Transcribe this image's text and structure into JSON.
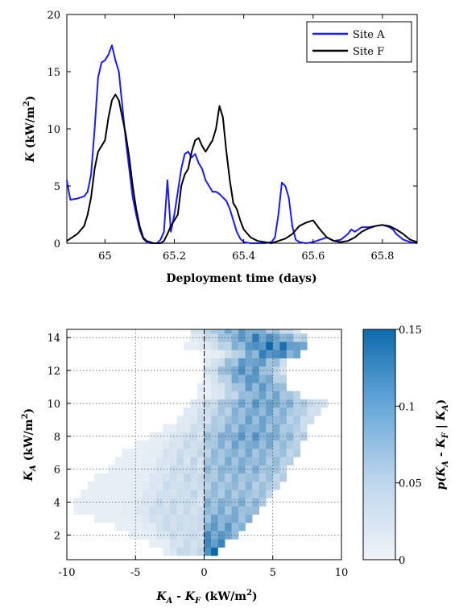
{
  "chart_data": [
    {
      "type": "line",
      "xlabel": "Deployment time (days)",
      "ylabel": {
        "main": "K",
        "unit": "(kW/m",
        "sup": "2",
        "close": ")"
      },
      "xlim": [
        64.89,
        65.9
      ],
      "ylim": [
        0,
        20
      ],
      "xticks": [
        65,
        65.2,
        65.4,
        65.6,
        65.8
      ],
      "xtick_labels": [
        "65",
        "65.2",
        "65.4",
        "65.6",
        "65.8"
      ],
      "yticks": [
        0,
        5,
        10,
        15,
        20
      ],
      "ytick_labels": [
        "0",
        "5",
        "10",
        "15",
        "20"
      ],
      "grid": false,
      "legend_position": "top-right",
      "series": [
        {
          "name": "Site A",
          "color": "#1a1aff",
          "x": [
            64.89,
            64.9,
            64.92,
            64.94,
            64.95,
            64.96,
            64.97,
            64.98,
            64.99,
            65.0,
            65.01,
            65.02,
            65.03,
            65.04,
            65.05,
            65.06,
            65.07,
            65.08,
            65.09,
            65.1,
            65.11,
            65.12,
            65.13,
            65.14,
            65.15,
            65.16,
            65.17,
            65.18,
            65.19,
            65.2,
            65.21,
            65.22,
            65.23,
            65.24,
            65.25,
            65.26,
            65.27,
            65.28,
            65.29,
            65.3,
            65.31,
            65.32,
            65.33,
            65.34,
            65.35,
            65.36,
            65.37,
            65.38,
            65.39,
            65.4,
            65.42,
            65.44,
            65.46,
            65.48,
            65.49,
            65.5,
            65.51,
            65.52,
            65.53,
            65.54,
            65.55,
            65.56,
            65.58,
            65.6,
            65.62,
            65.64,
            65.66,
            65.68,
            65.7,
            65.71,
            65.72,
            65.73,
            65.74,
            65.76,
            65.78,
            65.8,
            65.82,
            65.83,
            65.84,
            65.86,
            65.88,
            65.9
          ],
          "y": [
            5.5,
            3.8,
            3.9,
            4.1,
            4.5,
            6.0,
            10.0,
            14.5,
            15.8,
            16.0,
            16.5,
            17.3,
            16.0,
            15.0,
            12.0,
            9.0,
            6.5,
            4.0,
            2.5,
            1.2,
            0.4,
            0.1,
            0.0,
            0.0,
            0.0,
            0.3,
            1.0,
            5.5,
            1.0,
            2.5,
            4.5,
            6.5,
            7.8,
            8.0,
            7.5,
            7.8,
            7.0,
            6.5,
            5.5,
            5.0,
            4.5,
            4.5,
            4.3,
            4.0,
            3.7,
            3.0,
            2.0,
            1.0,
            0.4,
            0.1,
            0.0,
            0.0,
            0.0,
            0.1,
            0.5,
            2.5,
            5.3,
            5.0,
            4.0,
            1.5,
            0.3,
            0.1,
            0.0,
            0.1,
            0.3,
            0.5,
            0.2,
            0.3,
            0.8,
            1.2,
            1.0,
            1.2,
            1.4,
            1.4,
            1.5,
            1.6,
            1.4,
            1.2,
            0.8,
            0.3,
            0.1,
            0.0
          ]
        },
        {
          "name": "Site F",
          "color": "#000000",
          "x": [
            64.89,
            64.9,
            64.92,
            64.94,
            64.95,
            64.96,
            64.97,
            64.98,
            64.99,
            65.0,
            65.01,
            65.02,
            65.03,
            65.04,
            65.05,
            65.06,
            65.07,
            65.08,
            65.09,
            65.1,
            65.11,
            65.12,
            65.13,
            65.14,
            65.15,
            65.16,
            65.17,
            65.18,
            65.19,
            65.2,
            65.21,
            65.22,
            65.23,
            65.24,
            65.25,
            65.26,
            65.27,
            65.28,
            65.29,
            65.3,
            65.31,
            65.32,
            65.33,
            65.34,
            65.35,
            65.36,
            65.37,
            65.38,
            65.39,
            65.4,
            65.42,
            65.44,
            65.46,
            65.48,
            65.5,
            65.52,
            65.54,
            65.56,
            65.58,
            65.6,
            65.62,
            65.64,
            65.66,
            65.68,
            65.7,
            65.72,
            65.74,
            65.76,
            65.78,
            65.8,
            65.82,
            65.84,
            65.86,
            65.88,
            65.9
          ],
          "y": [
            0.2,
            0.4,
            0.8,
            1.5,
            2.5,
            4.0,
            6.5,
            8.0,
            8.5,
            9.0,
            11.0,
            12.5,
            13.0,
            12.5,
            11.0,
            9.5,
            7.5,
            5.0,
            3.0,
            1.5,
            0.5,
            0.2,
            0.1,
            0.0,
            0.0,
            0.0,
            0.2,
            0.8,
            1.5,
            2.0,
            2.5,
            5.0,
            6.0,
            6.5,
            8.0,
            9.0,
            9.2,
            8.5,
            8.0,
            8.5,
            9.0,
            10.0,
            12.0,
            11.0,
            8.0,
            5.5,
            3.5,
            3.0,
            2.0,
            1.2,
            0.5,
            0.2,
            0.1,
            0.0,
            0.2,
            0.4,
            0.8,
            1.5,
            1.8,
            2.0,
            1.2,
            0.5,
            0.2,
            0.1,
            0.2,
            0.5,
            1.0,
            1.3,
            1.5,
            1.6,
            1.5,
            1.2,
            0.8,
            0.3,
            0.1
          ]
        }
      ]
    },
    {
      "type": "heatmap",
      "xlabel": {
        "k1": "K",
        "s1": "A",
        "mid": " - ",
        "k2": "K",
        "s2": "F",
        "unit": " (kW/m",
        "sup": "2",
        "close": ")"
      },
      "ylabel": {
        "main": "K",
        "sub": "A",
        "unit": " (kW/m",
        "sup": "2",
        "close": ")"
      },
      "xlim": [
        -10,
        10
      ],
      "ylim": [
        0.5,
        14.5
      ],
      "xticks": [
        -10,
        -5,
        0,
        5,
        10
      ],
      "xtick_labels": [
        "-10",
        "-5",
        "0",
        "5",
        "10"
      ],
      "yticks": [
        2,
        4,
        6,
        8,
        10,
        12,
        14
      ],
      "ytick_labels": [
        "2",
        "4",
        "6",
        "8",
        "10",
        "12",
        "14"
      ],
      "grid": true,
      "zero_line": "dashed",
      "colorbar": {
        "position": "right",
        "min": 0,
        "max": 0.15,
        "ticks": [
          0,
          0.05,
          0.1,
          0.15
        ],
        "tick_labels": [
          "0",
          "0.05",
          "0.1",
          "0.15"
        ],
        "label": {
          "p": "p(",
          "k1": "K",
          "s1": "A",
          "mid": " - ",
          "k2": "K",
          "s2": "F",
          "bar": " | ",
          "k3": "K",
          "s3": "A",
          "close": ")"
        },
        "color_low": "#f0f3f8",
        "color_high": "#0f6aad"
      },
      "bins": {
        "x_bin_width": 0.5,
        "y_bin_height": 0.5,
        "description": "each row r: center, spread (left), spread (right), peak probability"
      },
      "rows": [
        {
          "k": 1.0,
          "lo": -3.0,
          "hi": 1.0,
          "center": 0.2,
          "peak": 0.15
        },
        {
          "k": 1.5,
          "lo": -4.0,
          "hi": 1.5,
          "center": 0.5,
          "peak": 0.12
        },
        {
          "k": 2.0,
          "lo": -5.5,
          "hi": 2.5,
          "center": 0.8,
          "peak": 0.1
        },
        {
          "k": 2.5,
          "lo": -6.5,
          "hi": 3.0,
          "center": 1.0,
          "peak": 0.09
        },
        {
          "k": 3.0,
          "lo": -8.0,
          "hi": 3.5,
          "center": 1.2,
          "peak": 0.08
        },
        {
          "k": 3.5,
          "lo": -9.5,
          "hi": 4.0,
          "center": 1.5,
          "peak": 0.07
        },
        {
          "k": 4.0,
          "lo": -9.5,
          "hi": 4.5,
          "center": 1.8,
          "peak": 0.07
        },
        {
          "k": 4.5,
          "lo": -9.0,
          "hi": 5.0,
          "center": 2.0,
          "peak": 0.06
        },
        {
          "k": 5.0,
          "lo": -8.5,
          "hi": 5.5,
          "center": 2.2,
          "peak": 0.06
        },
        {
          "k": 5.5,
          "lo": -8.0,
          "hi": 6.0,
          "center": 2.4,
          "peak": 0.06
        },
        {
          "k": 6.0,
          "lo": -7.0,
          "hi": 6.0,
          "center": 2.6,
          "peak": 0.07
        },
        {
          "k": 6.5,
          "lo": -6.5,
          "hi": 6.5,
          "center": 2.8,
          "peak": 0.07
        },
        {
          "k": 7.0,
          "lo": -6.0,
          "hi": 7.0,
          "center": 3.0,
          "peak": 0.07
        },
        {
          "k": 7.5,
          "lo": -5.0,
          "hi": 7.0,
          "center": 3.2,
          "peak": 0.08
        },
        {
          "k": 8.0,
          "lo": -4.0,
          "hi": 7.5,
          "center": 3.4,
          "peak": 0.09
        },
        {
          "k": 8.5,
          "lo": -3.0,
          "hi": 7.5,
          "center": 3.6,
          "peak": 0.08
        },
        {
          "k": 9.0,
          "lo": -2.0,
          "hi": 8.0,
          "center": 3.8,
          "peak": 0.08
        },
        {
          "k": 9.5,
          "lo": -1.5,
          "hi": 8.5,
          "center": 4.0,
          "peak": 0.08
        },
        {
          "k": 10.0,
          "lo": -1.0,
          "hi": 9.0,
          "center": 4.2,
          "peak": 0.09
        },
        {
          "k": 10.5,
          "lo": -0.5,
          "hi": 7.0,
          "center": 4.4,
          "peak": 0.08
        },
        {
          "k": 11.0,
          "lo": -0.5,
          "hi": 6.0,
          "center": 4.0,
          "peak": 0.09
        },
        {
          "k": 11.5,
          "lo": 0.0,
          "hi": 6.0,
          "center": 3.5,
          "peak": 0.1
        },
        {
          "k": 12.0,
          "lo": 0.0,
          "hi": 6.0,
          "center": 3.0,
          "peak": 0.1
        },
        {
          "k": 12.5,
          "lo": 0.0,
          "hi": 6.0,
          "center": 3.5,
          "peak": 0.1
        },
        {
          "k": 13.0,
          "lo": 0.0,
          "hi": 7.0,
          "center": 5.0,
          "peak": 0.12
        },
        {
          "k": 13.5,
          "lo": -1.5,
          "hi": 7.5,
          "center": 5.0,
          "peak": 0.13
        },
        {
          "k": 14.0,
          "lo": -1.0,
          "hi": 7.5,
          "center": 4.0,
          "peak": 0.11
        },
        {
          "k": 14.5,
          "lo": -1.0,
          "hi": 7.0,
          "center": 3.0,
          "peak": 0.09
        }
      ]
    }
  ]
}
